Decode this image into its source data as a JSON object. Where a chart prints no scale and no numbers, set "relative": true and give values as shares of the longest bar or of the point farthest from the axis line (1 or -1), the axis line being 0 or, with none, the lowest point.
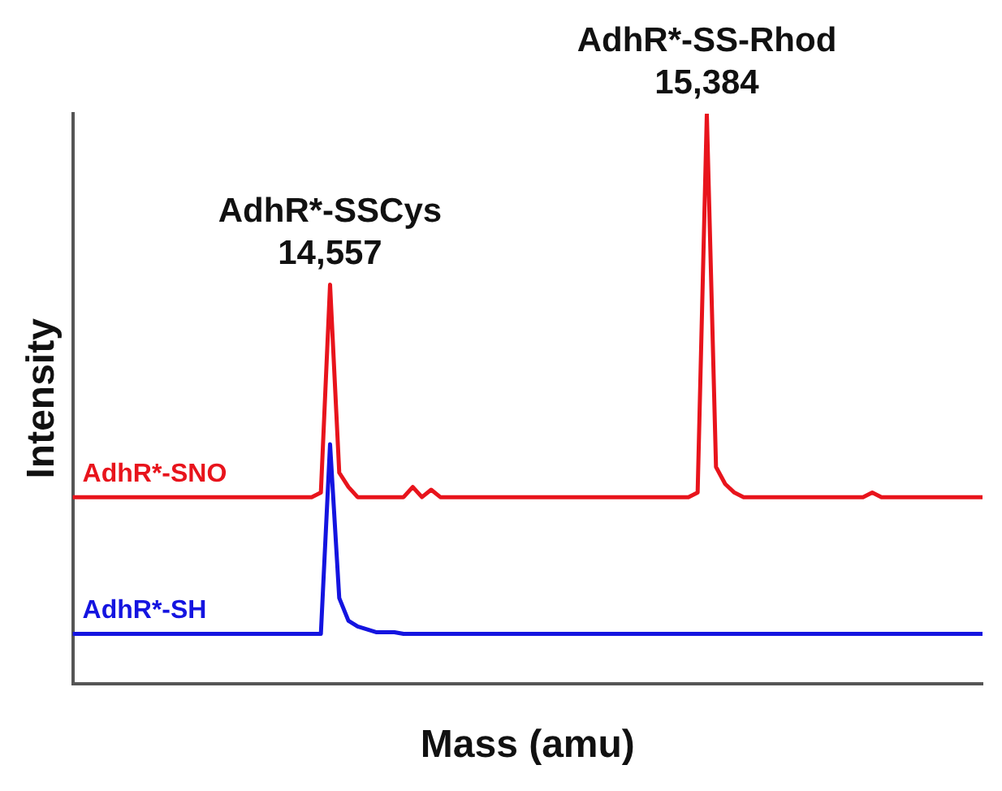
{
  "chart_data": {
    "type": "line",
    "relative": true,
    "xlabel": "Mass (amu)",
    "ylabel": "Intensity",
    "grid": false,
    "legend": false,
    "marker": "none",
    "line_style": "solid",
    "categories": [
      null,
      null,
      null,
      null,
      null,
      null,
      null,
      null,
      null,
      null,
      null,
      null,
      null,
      null,
      null,
      null,
      null,
      null,
      null,
      null,
      null,
      null,
      null,
      null,
      null,
      null,
      null,
      null,
      null,
      null,
      null,
      null,
      null,
      null,
      null,
      null,
      null,
      null,
      null,
      null,
      null,
      null,
      null,
      null,
      null,
      null,
      null,
      null,
      null,
      null,
      null,
      null,
      null,
      null,
      null,
      null,
      null,
      null,
      null,
      null,
      null,
      null,
      null,
      null,
      null,
      null,
      null,
      null,
      null,
      null,
      null,
      null,
      null,
      null,
      null,
      null,
      null,
      null,
      null,
      null,
      null,
      null,
      null,
      null,
      null,
      null,
      null,
      null,
      null,
      null,
      null,
      null,
      null,
      null,
      null,
      null,
      null,
      null,
      null,
      null
    ],
    "series": [
      {
        "name": "AdhR*-SNO",
        "color": "#e8141c",
        "values": [
          0.327,
          0.327,
          0.327,
          0.327,
          0.327,
          0.327,
          0.327,
          0.327,
          0.327,
          0.327,
          0.327,
          0.327,
          0.327,
          0.327,
          0.327,
          0.327,
          0.327,
          0.327,
          0.327,
          0.327,
          0.327,
          0.327,
          0.327,
          0.327,
          0.327,
          0.327,
          0.327,
          0.335,
          0.7,
          0.37,
          0.345,
          0.327,
          0.327,
          0.327,
          0.327,
          0.327,
          0.327,
          0.345,
          0.327,
          0.34,
          0.327,
          0.327,
          0.327,
          0.327,
          0.327,
          0.327,
          0.327,
          0.327,
          0.327,
          0.327,
          0.327,
          0.327,
          0.327,
          0.327,
          0.327,
          0.327,
          0.327,
          0.327,
          0.327,
          0.327,
          0.327,
          0.327,
          0.327,
          0.327,
          0.327,
          0.327,
          0.327,
          0.327,
          0.335,
          1.0,
          0.38,
          0.35,
          0.335,
          0.327,
          0.327,
          0.327,
          0.327,
          0.327,
          0.327,
          0.327,
          0.327,
          0.327,
          0.327,
          0.327,
          0.327,
          0.327,
          0.327,
          0.335,
          0.327,
          0.327,
          0.327,
          0.327,
          0.327,
          0.327,
          0.327,
          0.327,
          0.327,
          0.327,
          0.327,
          0.327
        ]
      },
      {
        "name": "AdhR*-SH",
        "color": "#1414e0",
        "values": [
          0.087,
          0.087,
          0.087,
          0.087,
          0.087,
          0.087,
          0.087,
          0.087,
          0.087,
          0.087,
          0.087,
          0.087,
          0.087,
          0.087,
          0.087,
          0.087,
          0.087,
          0.087,
          0.087,
          0.087,
          0.087,
          0.087,
          0.087,
          0.087,
          0.087,
          0.087,
          0.087,
          0.087,
          0.42,
          0.15,
          0.11,
          0.1,
          0.095,
          0.09,
          0.09,
          0.09,
          0.087,
          0.087,
          0.087,
          0.087,
          0.087,
          0.087,
          0.087,
          0.087,
          0.087,
          0.087,
          0.087,
          0.087,
          0.087,
          0.087,
          0.087,
          0.087,
          0.087,
          0.087,
          0.087,
          0.087,
          0.087,
          0.087,
          0.087,
          0.087,
          0.087,
          0.087,
          0.087,
          0.087,
          0.087,
          0.087,
          0.087,
          0.087,
          0.087,
          0.087,
          0.087,
          0.087,
          0.087,
          0.087,
          0.087,
          0.087,
          0.087,
          0.087,
          0.087,
          0.087,
          0.087,
          0.087,
          0.087,
          0.087,
          0.087,
          0.087,
          0.087,
          0.087,
          0.087,
          0.087,
          0.087,
          0.087,
          0.087,
          0.087,
          0.087,
          0.087,
          0.087,
          0.087,
          0.087,
          0.087
        ]
      }
    ],
    "annotations": [
      {
        "text": "AdhR*-SSCys\n14,557",
        "y": 0.7
      },
      {
        "text": "AdhR*-SS-Rhod\n15,384",
        "y": 1.0
      }
    ]
  }
}
